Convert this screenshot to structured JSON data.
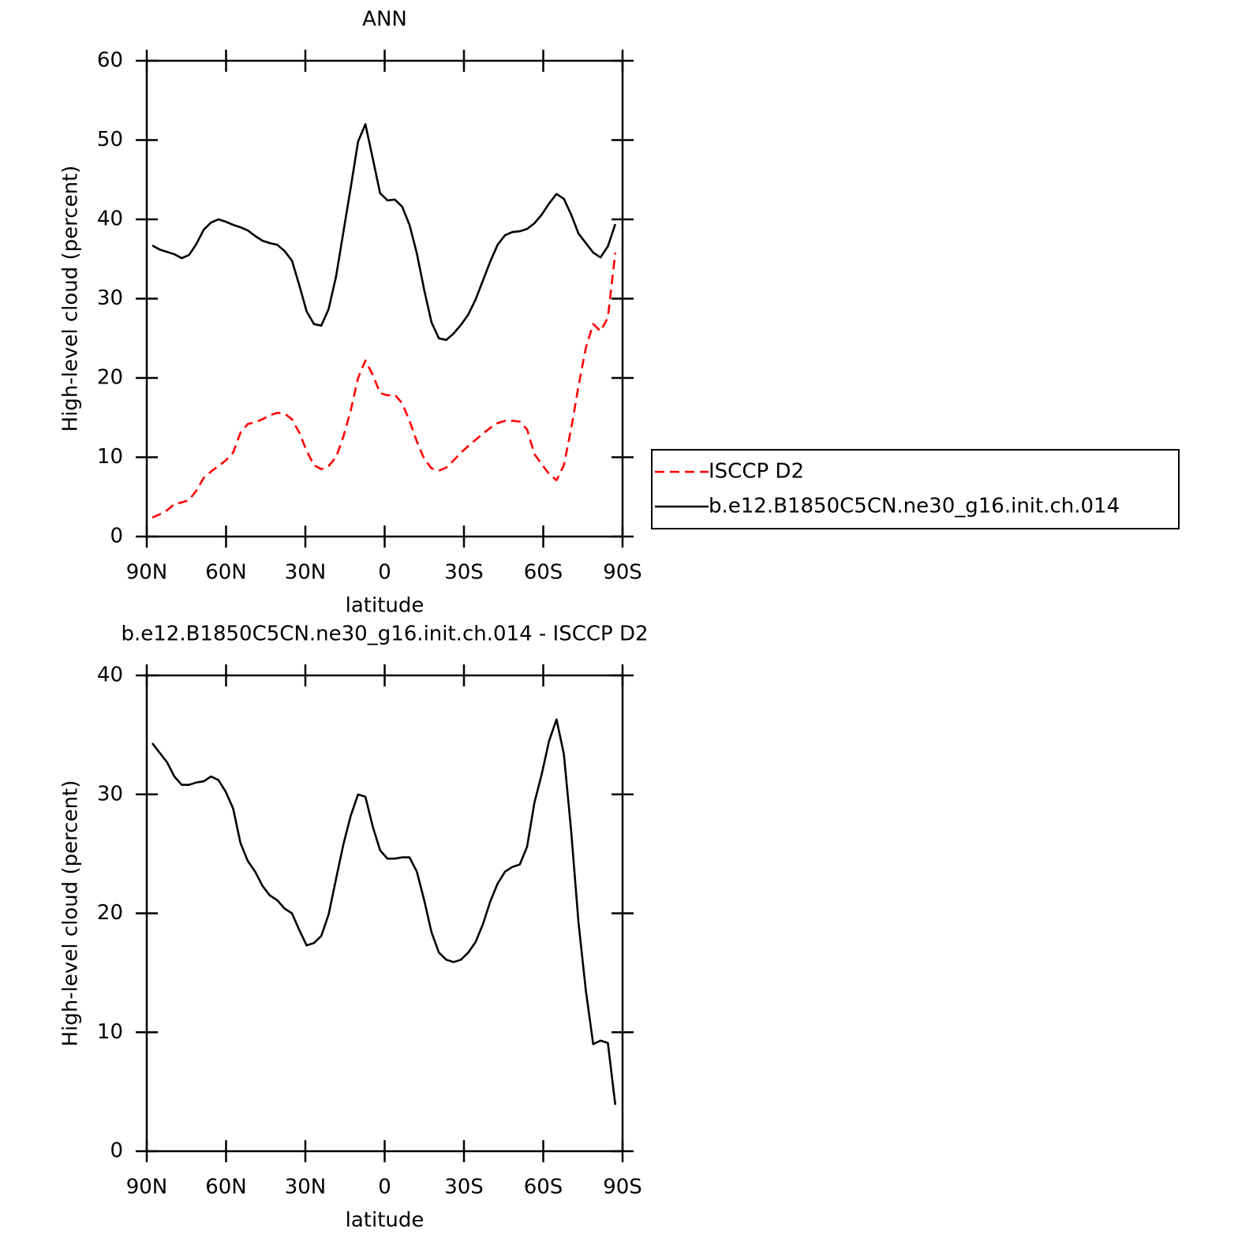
{
  "chart_data": [
    {
      "type": "line",
      "title": "ANN",
      "xlabel": "latitude",
      "ylabel": "High-level cloud (percent)",
      "xlim": [
        90,
        -90
      ],
      "ylim": [
        0,
        60
      ],
      "xticks": [
        {
          "value": 90,
          "label": "90N"
        },
        {
          "value": 60,
          "label": "60N"
        },
        {
          "value": 30,
          "label": "30N"
        },
        0,
        {
          "value": -30,
          "label": "30S"
        },
        {
          "value": -60,
          "label": "60S"
        },
        {
          "value": -90,
          "label": "90S"
        }
      ],
      "yticks": [
        0,
        10,
        20,
        30,
        40,
        50,
        60
      ],
      "legend": "right",
      "x": [
        87.9,
        85.12,
        82.34,
        79.56,
        76.78,
        74.0,
        71.22,
        68.44,
        65.66,
        62.88,
        60.1,
        57.32,
        54.54,
        51.76,
        48.98,
        46.2,
        43.42,
        40.64,
        37.86,
        35.08,
        32.3,
        29.52,
        26.74,
        23.96,
        21.18,
        18.4,
        15.62,
        12.84,
        10.06,
        7.28,
        4.5,
        1.72,
        -1.06,
        -3.84,
        -6.62,
        -9.4,
        -12.18,
        -14.96,
        -17.74,
        -20.52,
        -23.3,
        -26.08,
        -28.86,
        -31.64,
        -34.42,
        -37.2,
        -39.98,
        -42.76,
        -45.54,
        -48.32,
        -51.1,
        -53.88,
        -56.66,
        -59.44,
        -62.22,
        -65.0,
        -67.78,
        -70.56,
        -73.34,
        -76.12,
        -78.9,
        -81.68,
        -84.46,
        -87.24
      ],
      "series": [
        {
          "name": "ISCCP D2",
          "color": "#ff0000",
          "dash": true,
          "values": [
            2.4,
            2.8,
            3.3,
            4.1,
            4.3,
            4.6,
            5.8,
            7.4,
            8.2,
            8.9,
            9.6,
            10.6,
            13.1,
            14.2,
            14.4,
            14.8,
            15.3,
            15.6,
            15.5,
            14.8,
            13.1,
            10.8,
            9.0,
            8.5,
            8.9,
            10.0,
            12.6,
            15.9,
            20.0,
            22.2,
            20.4,
            18.1,
            17.8,
            17.9,
            16.8,
            14.6,
            12.0,
            9.8,
            8.6,
            8.3,
            8.7,
            9.6,
            10.6,
            11.4,
            12.2,
            13.0,
            13.7,
            14.3,
            14.6,
            14.6,
            14.5,
            13.5,
            10.4,
            9.1,
            7.9,
            7.1,
            9.0,
            13.6,
            19.0,
            23.8,
            26.8,
            25.9,
            27.6,
            35.8
          ]
        },
        {
          "name": "b.e12.B1850C5CN.ne30_g16.init.ch.014",
          "color": "#000000",
          "dash": false,
          "values": [
            36.7,
            36.2,
            35.9,
            35.6,
            35.1,
            35.5,
            36.9,
            38.7,
            39.6,
            40.0,
            39.7,
            39.3,
            39.0,
            38.6,
            37.9,
            37.3,
            37.0,
            36.8,
            36.0,
            34.8,
            31.7,
            28.4,
            26.8,
            26.6,
            28.7,
            32.8,
            38.4,
            44.0,
            49.8,
            52.0,
            47.7,
            43.3,
            42.4,
            42.5,
            41.6,
            39.3,
            35.7,
            31.1,
            27.0,
            25.0,
            24.8,
            25.6,
            26.7,
            28.0,
            29.9,
            32.3,
            34.7,
            36.8,
            38.0,
            38.4,
            38.5,
            38.8,
            39.5,
            40.6,
            42.0,
            43.2,
            42.6,
            40.6,
            38.2,
            37.0,
            35.8,
            35.2,
            36.6,
            39.4
          ]
        }
      ]
    },
    {
      "type": "line",
      "title": "b.e12.B1850C5CN.ne30_g16.init.ch.014 - ISCCP D2",
      "xlabel": "latitude",
      "ylabel": "High-level cloud (percent)",
      "xlim": [
        90,
        -90
      ],
      "ylim": [
        0,
        40
      ],
      "xticks": [
        {
          "value": 90,
          "label": "90N"
        },
        {
          "value": 60,
          "label": "60N"
        },
        {
          "value": 30,
          "label": "30N"
        },
        0,
        {
          "value": -30,
          "label": "30S"
        },
        {
          "value": -60,
          "label": "60S"
        },
        {
          "value": -90,
          "label": "90S"
        }
      ],
      "yticks": [
        0,
        10,
        20,
        30,
        40
      ],
      "x": [
        87.9,
        85.12,
        82.34,
        79.56,
        76.78,
        74.0,
        71.22,
        68.44,
        65.66,
        62.88,
        60.1,
        57.32,
        54.54,
        51.76,
        48.98,
        46.2,
        43.42,
        40.64,
        37.86,
        35.08,
        32.3,
        29.52,
        26.74,
        23.96,
        21.18,
        18.4,
        15.62,
        12.84,
        10.06,
        7.28,
        4.5,
        1.72,
        -1.06,
        -3.84,
        -6.62,
        -9.4,
        -12.18,
        -14.96,
        -17.74,
        -20.52,
        -23.3,
        -26.08,
        -28.86,
        -31.64,
        -34.42,
        -37.2,
        -39.98,
        -42.76,
        -45.54,
        -48.32,
        -51.1,
        -53.88,
        -56.66,
        -59.44,
        -62.22,
        -65.0,
        -67.78,
        -70.56,
        -73.34,
        -76.12,
        -78.9,
        -81.68,
        -84.46,
        -87.24
      ],
      "series": [
        {
          "color": "#000000",
          "dash": false,
          "values": [
            34.3,
            33.5,
            32.7,
            31.5,
            30.8,
            30.8,
            31.0,
            31.1,
            31.5,
            31.2,
            30.2,
            28.8,
            25.9,
            24.4,
            23.5,
            22.3,
            21.5,
            21.1,
            20.4,
            20.0,
            18.6,
            17.3,
            17.5,
            18.1,
            19.9,
            22.9,
            25.8,
            28.2,
            30.0,
            29.8,
            27.3,
            25.3,
            24.6,
            24.6,
            24.7,
            24.7,
            23.5,
            21.1,
            18.4,
            16.7,
            16.1,
            15.9,
            16.1,
            16.7,
            17.6,
            19.1,
            21.0,
            22.5,
            23.5,
            23.9,
            24.1,
            25.6,
            29.3,
            31.7,
            34.5,
            36.3,
            33.4,
            26.9,
            19.2,
            13.5,
            9.0,
            9.3,
            9.1,
            3.9
          ]
        }
      ]
    }
  ]
}
